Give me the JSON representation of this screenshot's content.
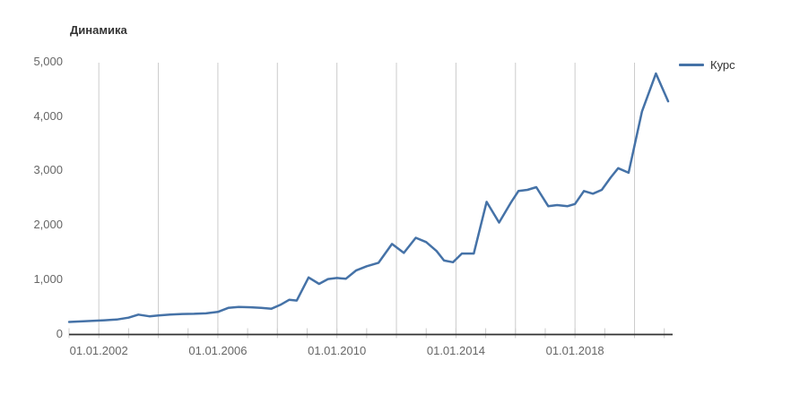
{
  "title": "Динамика",
  "legend": {
    "items": [
      {
        "label": "Курс",
        "color": "#4572a7"
      }
    ]
  },
  "colors": {
    "series": "#4572a7",
    "grid": "#cccccc",
    "axis": "#333333",
    "axis_text": "#666666",
    "title_text": "#333333",
    "background": "#ffffff"
  },
  "chart_data": {
    "type": "line",
    "title": "Динамика",
    "legend_position": "top-right",
    "grid": "vertical-only",
    "xlabel": "",
    "ylabel": "",
    "x_domain_years": [
      2001,
      2021.25
    ],
    "ylim": [
      0,
      5000
    ],
    "x_gridline_years": [
      2002,
      2004,
      2006,
      2008,
      2010,
      2012,
      2014,
      2016,
      2018,
      2020
    ],
    "x_tick_years": [
      2001,
      2002,
      2003,
      2004,
      2005,
      2006,
      2007,
      2008,
      2009,
      2010,
      2011,
      2012,
      2013,
      2014,
      2015,
      2016,
      2017,
      2018,
      2019,
      2020,
      2021
    ],
    "x_axis_labels": [
      {
        "year": 2002,
        "label": "01.01.2002"
      },
      {
        "year": 2006,
        "label": "01.01.2006"
      },
      {
        "year": 2010,
        "label": "01.01.2010"
      },
      {
        "year": 2014,
        "label": "01.01.2014"
      },
      {
        "year": 2018,
        "label": "01.01.2018"
      }
    ],
    "y_axis_labels": [
      {
        "value": 0,
        "label": "0"
      },
      {
        "value": 1000,
        "label": "1,000"
      },
      {
        "value": 2000,
        "label": "2,000"
      },
      {
        "value": 3000,
        "label": "3,000"
      },
      {
        "value": 4000,
        "label": "4,000"
      },
      {
        "value": 5000,
        "label": "5,000"
      }
    ],
    "series": [
      {
        "name": "Курс",
        "color": "#4572a7",
        "points": [
          [
            2001.0,
            230
          ],
          [
            2001.4,
            240
          ],
          [
            2001.8,
            252
          ],
          [
            2002.2,
            262
          ],
          [
            2002.6,
            275
          ],
          [
            2003.0,
            310
          ],
          [
            2003.33,
            365
          ],
          [
            2003.7,
            335
          ],
          [
            2004.0,
            350
          ],
          [
            2004.4,
            365
          ],
          [
            2004.8,
            378
          ],
          [
            2005.2,
            380
          ],
          [
            2005.6,
            388
          ],
          [
            2006.0,
            415
          ],
          [
            2006.35,
            490
          ],
          [
            2006.7,
            505
          ],
          [
            2007.1,
            500
          ],
          [
            2007.45,
            490
          ],
          [
            2007.8,
            475
          ],
          [
            2008.1,
            545
          ],
          [
            2008.4,
            640
          ],
          [
            2008.65,
            625
          ],
          [
            2009.05,
            1050
          ],
          [
            2009.4,
            930
          ],
          [
            2009.7,
            1020
          ],
          [
            2010.0,
            1040
          ],
          [
            2010.3,
            1025
          ],
          [
            2010.65,
            1180
          ],
          [
            2011.0,
            1255
          ],
          [
            2011.4,
            1320
          ],
          [
            2011.85,
            1665
          ],
          [
            2012.25,
            1500
          ],
          [
            2012.65,
            1780
          ],
          [
            2013.0,
            1700
          ],
          [
            2013.35,
            1535
          ],
          [
            2013.6,
            1360
          ],
          [
            2013.9,
            1330
          ],
          [
            2014.2,
            1490
          ],
          [
            2014.6,
            1490
          ],
          [
            2015.03,
            2440
          ],
          [
            2015.45,
            2060
          ],
          [
            2015.85,
            2430
          ],
          [
            2016.1,
            2640
          ],
          [
            2016.4,
            2660
          ],
          [
            2016.7,
            2710
          ],
          [
            2017.1,
            2360
          ],
          [
            2017.4,
            2380
          ],
          [
            2017.75,
            2360
          ],
          [
            2018.0,
            2400
          ],
          [
            2018.3,
            2640
          ],
          [
            2018.6,
            2590
          ],
          [
            2018.9,
            2660
          ],
          [
            2019.2,
            2890
          ],
          [
            2019.45,
            3060
          ],
          [
            2019.8,
            2975
          ],
          [
            2020.25,
            4100
          ],
          [
            2020.72,
            4800
          ],
          [
            2021.13,
            4290
          ]
        ]
      }
    ]
  }
}
